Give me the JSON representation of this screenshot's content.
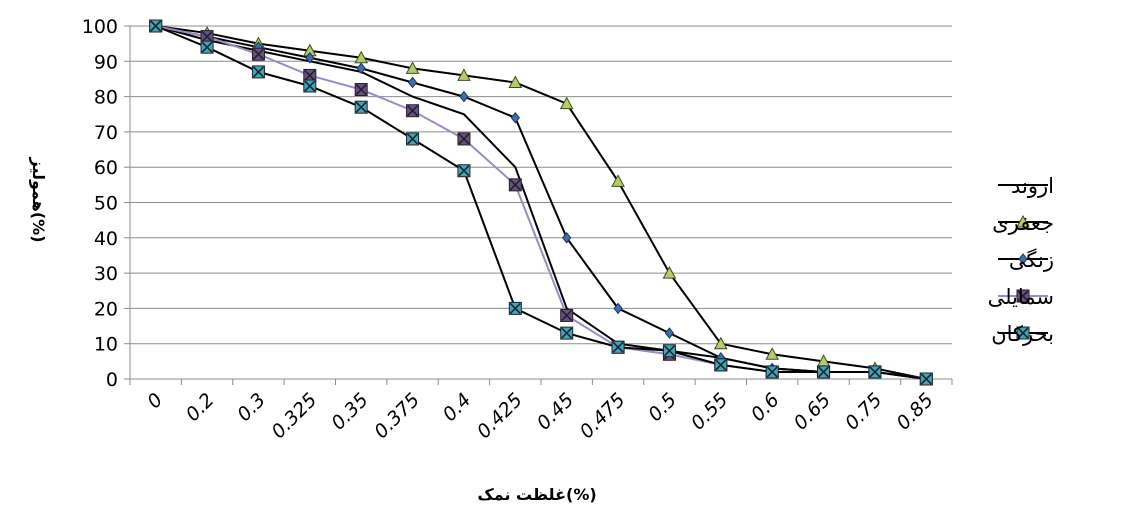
{
  "chart_data": {
    "type": "line",
    "xlabel": "غلظت نمک(%)",
    "ylabel": "همولیز(%)",
    "categories": [
      "0",
      "0.2",
      "0.3",
      "0.325",
      "0.35",
      "0.375",
      "0.4",
      "0.425",
      "0.45",
      "0.475",
      "0.5",
      "0.55",
      "0.6",
      "0.65",
      "0.75",
      "0.85"
    ],
    "ylim": [
      0,
      100
    ],
    "yticks": [
      0,
      10,
      20,
      30,
      40,
      50,
      60,
      70,
      80,
      90,
      100
    ],
    "grid": true,
    "legend_position": "right",
    "series": [
      {
        "name": "اروند",
        "color": "#000000",
        "marker": "none",
        "values": [
          100,
          96,
          93,
          90,
          87,
          80,
          75,
          60,
          20,
          10,
          8,
          6,
          3,
          2,
          2,
          0
        ]
      },
      {
        "name": "جعفری",
        "color": "#000000",
        "marker": "triangle",
        "marker_color": "#b5cc6a",
        "values": [
          100,
          98,
          95,
          93,
          91,
          88,
          86,
          84,
          78,
          56,
          30,
          10,
          7,
          5,
          3,
          0
        ]
      },
      {
        "name": "زنگی",
        "color": "#000000",
        "marker": "diamond",
        "marker_color": "#3d6fb0",
        "values": [
          100,
          97,
          94,
          91,
          88,
          84,
          80,
          74,
          40,
          20,
          13,
          6,
          3,
          2,
          2,
          0
        ]
      },
      {
        "name": "سمایلی",
        "color": "#9b8ac4",
        "marker": "square-x",
        "marker_color": "#6b4f8a",
        "values": [
          100,
          97,
          92,
          86,
          82,
          76,
          68,
          55,
          18,
          9,
          7,
          4,
          2,
          2,
          2,
          0
        ]
      },
      {
        "name": "بحرکان",
        "color": "#000000",
        "marker": "square-x",
        "marker_color": "#3aa7c4",
        "values": [
          100,
          94,
          87,
          83,
          77,
          68,
          59,
          20,
          13,
          9,
          8,
          4,
          2,
          2,
          2,
          0
        ]
      }
    ]
  }
}
